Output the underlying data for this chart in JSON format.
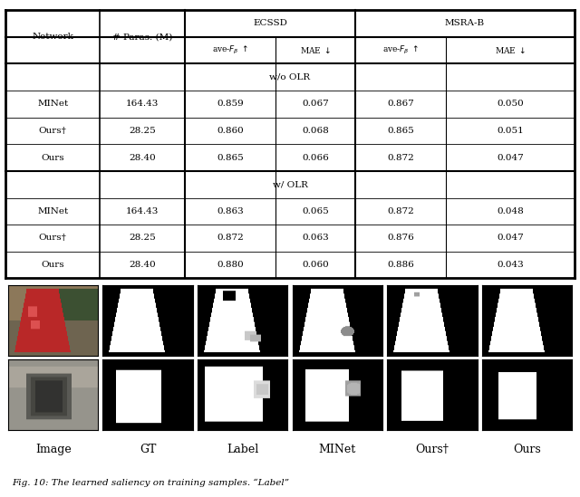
{
  "table": {
    "section1_label": "w/o OLR",
    "section2_label": "w/ OLR",
    "rows_wo_olr": [
      [
        "MINet",
        "164.43",
        "0.859",
        "0.067",
        "0.867",
        "0.050"
      ],
      [
        "Ours†",
        "28.25",
        "0.860",
        "0.068",
        "0.865",
        "0.051"
      ],
      [
        "Ours",
        "28.40",
        "0.865",
        "0.066",
        "0.872",
        "0.047"
      ]
    ],
    "rows_w_olr": [
      [
        "MINet",
        "164.43",
        "0.863",
        "0.065",
        "0.872",
        "0.048"
      ],
      [
        "Ours†",
        "28.25",
        "0.872",
        "0.063",
        "0.876",
        "0.047"
      ],
      [
        "Ours",
        "28.40",
        "0.880",
        "0.060",
        "0.886",
        "0.043"
      ]
    ]
  },
  "caption": "Fig. 10: The learned saliency on training samples. “Label”",
  "col_labels": [
    "Image",
    "GT",
    "Label",
    "MINet",
    "Ours†",
    "Ours"
  ],
  "vlines_x": [
    0.0,
    0.165,
    0.315,
    0.475,
    0.615,
    0.775,
    1.0
  ],
  "n_rows": 10,
  "fontsize": 7.5,
  "header_fontsize": 7.5,
  "sub_header_fontsize": 6.5,
  "bg_color": "#ffffff"
}
